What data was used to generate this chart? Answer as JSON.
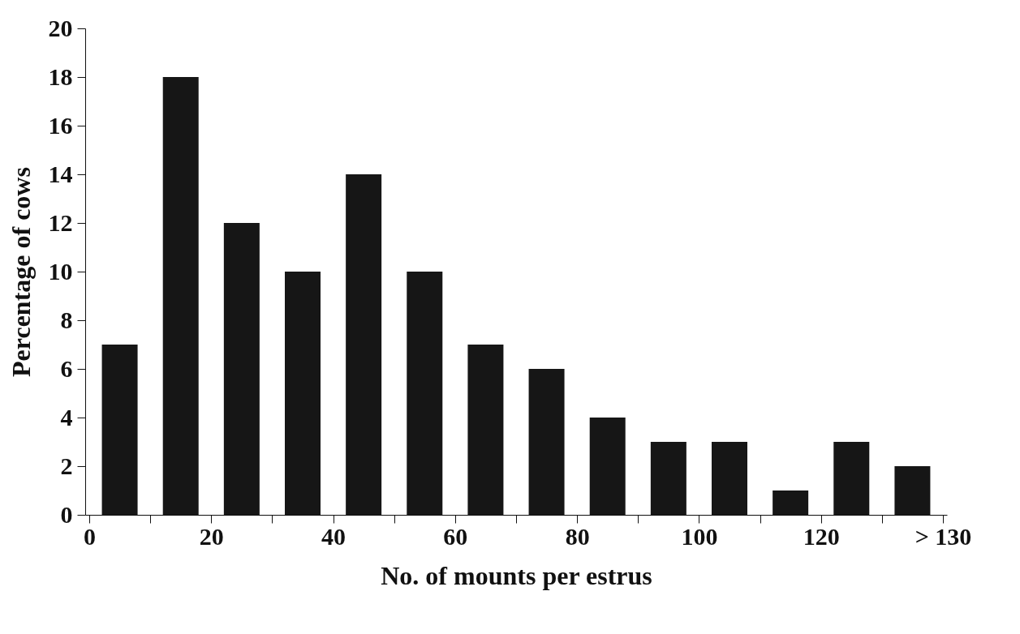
{
  "chart_data": {
    "type": "bar",
    "x": [
      5,
      15,
      25,
      35,
      45,
      55,
      65,
      75,
      85,
      95,
      105,
      115,
      125,
      135
    ],
    "values": [
      7,
      18,
      12,
      10,
      14,
      10,
      7,
      6,
      4,
      3,
      3,
      1,
      3,
      2
    ],
    "color": "#161616",
    "xlabel": "No. of mounts per estrus",
    "ylabel": "Percentage of cows",
    "xlim": [
      0,
      140
    ],
    "xticks": [
      0,
      {
        "value": 10,
        "label": null
      },
      20,
      {
        "value": 30,
        "label": null
      },
      40,
      {
        "value": 50,
        "label": null
      },
      60,
      {
        "value": 70,
        "label": null
      },
      80,
      {
        "value": 90,
        "label": null
      },
      100,
      {
        "value": 110,
        "label": null
      },
      120,
      {
        "value": 130,
        "label": null
      },
      {
        "value": 140,
        "label": "> 130"
      }
    ],
    "ylim": [
      0,
      20
    ],
    "yticks": [
      0,
      2,
      4,
      6,
      8,
      10,
      12,
      14,
      16,
      18,
      20
    ],
    "grid": false
  }
}
